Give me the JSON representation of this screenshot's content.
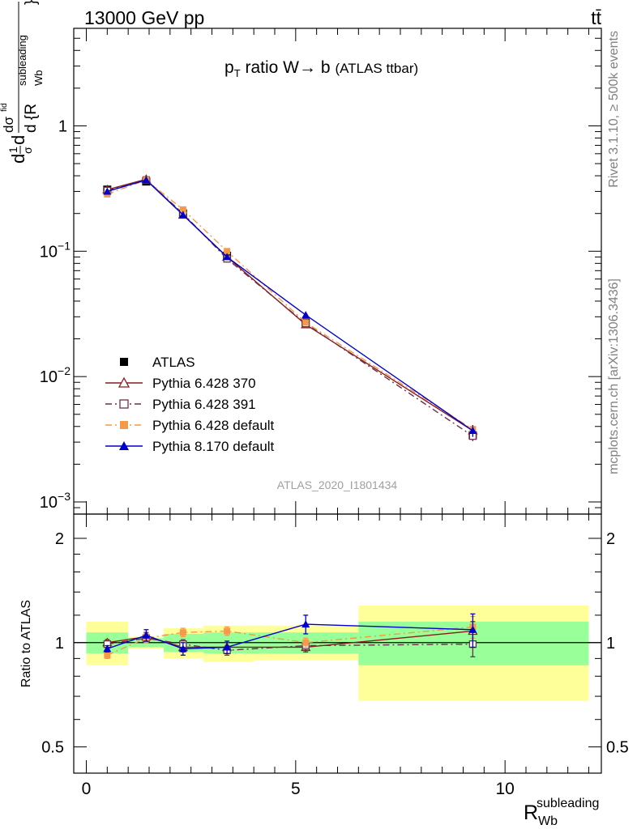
{
  "header": {
    "left": "13000 GeV pp",
    "right": "tt̄"
  },
  "side_labels": {
    "rivet": "Rivet 3.1.10, ≥ 500k events",
    "mcplots": "mcplots.cern.ch [arXiv:1306.3436]"
  },
  "watermark": "ATLAS_2020_I1801434",
  "chart_data": [
    {
      "type": "scatter",
      "title_parts": {
        "p": "p",
        "T": "T",
        "rest": " ratio W",
        "arrow": "→",
        "b": " b",
        "suffix": "(ATLAS ttbar)"
      },
      "yscale": "log",
      "ylim": [
        0.0008,
        6
      ],
      "xlim": [
        -0.3,
        12.3
      ],
      "ylabel_parts": {
        "d": "d",
        "one": "1",
        "sigma": "σ",
        "dsig": "dσ",
        "fid": "fid",
        "drb": "d {R",
        "sup": "subleading",
        "sub": "Wb",
        "close": "}"
      },
      "yticks": [
        {
          "value": 0.001,
          "base": "10",
          "exp": "−3"
        },
        {
          "value": 0.01,
          "base": "10",
          "exp": "−2"
        },
        {
          "value": 0.1,
          "base": "10",
          "exp": "−1"
        },
        {
          "value": 1,
          "base": "1",
          "exp": ""
        }
      ],
      "x": [
        0.5,
        1.43,
        2.31,
        3.36,
        5.24,
        9.23
      ],
      "legend_position": "bottom-left",
      "series": [
        {
          "name": "ATLAS",
          "color": "#000000",
          "marker": "square-filled",
          "dash": "none",
          "values": [
            0.31,
            0.36,
            0.2,
            0.092,
            0.027,
            0.0034
          ],
          "errors": [
            0.01,
            0.01,
            0.006,
            0.003,
            0.001,
            0.0002
          ]
        },
        {
          "name": "Pythia 6.428 370",
          "color": "#8b1a1a",
          "marker": "triangle-open",
          "dash": "none",
          "values": [
            0.31,
            0.375,
            0.195,
            0.09,
            0.026,
            0.0037
          ],
          "errors": [
            0.01,
            0.01,
            0.006,
            0.003,
            0.001,
            0.0003
          ]
        },
        {
          "name": "Pythia 6.428 391",
          "color": "#6b2f4f",
          "marker": "square-open",
          "dash": "dashdot",
          "values": [
            0.305,
            0.37,
            0.2,
            0.087,
            0.0265,
            0.00335
          ],
          "errors": [
            0.01,
            0.01,
            0.006,
            0.003,
            0.001,
            0.0003
          ]
        },
        {
          "name": "Pythia 6.428 default",
          "color": "#f59a4a",
          "marker": "square-filled",
          "dash": "dashdot",
          "values": [
            0.285,
            0.37,
            0.215,
            0.1,
            0.027,
            0.0038
          ],
          "errors": [
            0.01,
            0.01,
            0.006,
            0.003,
            0.001,
            0.0003
          ]
        },
        {
          "name": "Pythia 8.170 default",
          "color": "#0000cc",
          "marker": "triangle-filled",
          "dash": "none",
          "values": [
            0.3,
            0.37,
            0.195,
            0.09,
            0.031,
            0.0037
          ],
          "errors": [
            0.01,
            0.01,
            0.006,
            0.003,
            0.0015,
            0.0004
          ]
        }
      ]
    },
    {
      "type": "scatter",
      "ylabel": "Ratio to ATLAS",
      "xlabel_parts": {
        "R": "R",
        "sup": "subleading",
        "sub": "Wb"
      },
      "yscale": "log",
      "ylim": [
        0.42,
        2.35
      ],
      "xlim": [
        -0.3,
        12.3
      ],
      "yticks": [
        {
          "value": 0.5,
          "label": "0.5"
        },
        {
          "value": 1,
          "label": "1"
        },
        {
          "value": 2,
          "label": "2"
        }
      ],
      "xticks": [
        {
          "value": 0,
          "label": "0"
        },
        {
          "value": 5,
          "label": "5"
        },
        {
          "value": 10,
          "label": "10"
        }
      ],
      "bands": [
        {
          "x0": 0,
          "x1": 1,
          "green": [
            0.93,
            1.07
          ],
          "yellow": [
            0.86,
            1.15
          ]
        },
        {
          "x0": 1,
          "x1": 1.85,
          "green": [
            0.97,
            1.03
          ],
          "yellow": [
            0.96,
            1.04
          ]
        },
        {
          "x0": 1.85,
          "x1": 2.8,
          "green": [
            0.94,
            1.06
          ],
          "yellow": [
            0.9,
            1.1
          ]
        },
        {
          "x0": 2.8,
          "x1": 4,
          "green": [
            0.93,
            1.07
          ],
          "yellow": [
            0.88,
            1.12
          ]
        },
        {
          "x0": 4,
          "x1": 6.5,
          "green": [
            0.93,
            1.07
          ],
          "yellow": [
            0.89,
            1.12
          ]
        },
        {
          "x0": 6.5,
          "x1": 12,
          "green": [
            0.86,
            1.15
          ],
          "yellow": [
            0.68,
            1.28
          ]
        }
      ],
      "x": [
        0.5,
        1.43,
        2.31,
        3.36,
        5.24,
        9.23
      ],
      "series": [
        {
          "name": "Pythia 6.428 370",
          "color": "#8b1a1a",
          "marker": "triangle-open",
          "dash": "none",
          "values": [
            1.0,
            1.04,
            0.97,
            0.97,
            0.97,
            1.08
          ],
          "errors": [
            0.02,
            0.03,
            0.03,
            0.03,
            0.03,
            0.07
          ]
        },
        {
          "name": "Pythia 6.428 391",
          "color": "#6b2f4f",
          "marker": "square-open",
          "dash": "dashdot",
          "values": [
            0.99,
            1.03,
            0.99,
            0.95,
            0.98,
            0.99
          ],
          "errors": [
            0.02,
            0.03,
            0.03,
            0.03,
            0.03,
            0.08
          ]
        },
        {
          "name": "Pythia 6.428 default",
          "color": "#f59a4a",
          "marker": "square-filled",
          "dash": "dashdot",
          "values": [
            0.92,
            1.03,
            1.07,
            1.08,
            1.0,
            1.11
          ],
          "errors": [
            0.02,
            0.03,
            0.03,
            0.03,
            0.03,
            0.08
          ]
        },
        {
          "name": "Pythia 8.170 default",
          "color": "#0000cc",
          "marker": "triangle-filled",
          "dash": "none",
          "values": [
            0.96,
            1.05,
            0.96,
            0.97,
            1.13,
            1.09
          ],
          "errors": [
            0.02,
            0.04,
            0.04,
            0.04,
            0.07,
            0.12
          ]
        }
      ]
    }
  ]
}
